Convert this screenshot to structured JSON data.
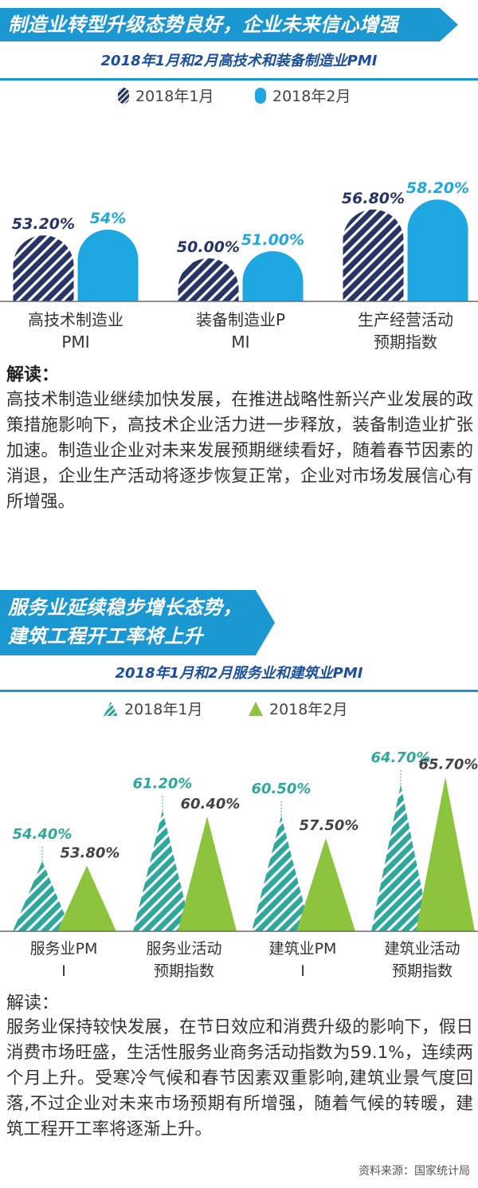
{
  "section1": {
    "banner": "制造业转型升级态势良好，企业未来信心增强",
    "chart_title": "2018年1月和2月高技术和装备制造业PMI",
    "note_heading": "解读：",
    "note_text": "高技术制造业继续加快发展，在推进战略性新兴产业发展的政策措施影响下，高技术企业活力进一步释放，装备制造业扩张加速。制造业企业对未来发展预期继续看好，随着春节因素的消退，企业生产活动将逐步恢复正常，企业对市场发展信心有所增强。"
  },
  "section2": {
    "banner_line1": "服务业延续稳步增长态势，",
    "banner_line2": "建筑工程开工率将上升",
    "chart_title": "2018年1月和2月服务业和建筑业PMI",
    "note_heading": "解读：",
    "note_text": "服务业保持较快发展，在节日效应和消费升级的影响下，假日消费市场旺盛，生活性服务业商务活动指数为59.1%，连续两个月上升。受寒冷气候和春节因素双重影响,建筑业景气度回落,不过企业对未来市场预期有所增强，随着气候的转暖，建筑工程开工率将逐渐上升。"
  },
  "source": "资料来源：国家统计局",
  "colors": {
    "banner": "#1b97d2",
    "jan1": "#263566",
    "feb1": "#1fa7e1",
    "jan2": "#2fa89c",
    "feb2": "#8cc43d",
    "title_text": "#1b4fa0"
  },
  "chart_data": [
    {
      "type": "bar",
      "title": "2018年1月和2月高技术和装备制造业PMI",
      "categories": [
        "高技术制造业PMI",
        "装备制造业PMI",
        "生产经营活动预期指数"
      ],
      "series": [
        {
          "name": "2018年1月",
          "values": [
            53.2,
            50.0,
            56.8
          ],
          "labels": [
            "53.20%",
            "50.00%",
            "56.80%"
          ]
        },
        {
          "name": "2018年2月",
          "values": [
            54.0,
            51.0,
            58.2
          ],
          "labels": [
            "54%",
            "51.00%",
            "58.20%"
          ]
        }
      ],
      "legend": "top-center",
      "grid": false
    },
    {
      "type": "bar",
      "title": "2018年1月和2月服务业和建筑业PMI",
      "categories": [
        "服务业PMI",
        "服务业活动预期指数",
        "建筑业PMI",
        "建筑业活动预期指数"
      ],
      "series": [
        {
          "name": "2018年1月",
          "values": [
            54.4,
            61.2,
            60.5,
            64.7
          ],
          "labels": [
            "54.40%",
            "61.20%",
            "60.50%",
            "64.70%"
          ]
        },
        {
          "name": "2018年2月",
          "values": [
            53.8,
            60.4,
            57.5,
            65.7
          ],
          "labels": [
            "53.80%",
            "60.40%",
            "57.50%",
            "65.70%"
          ]
        }
      ],
      "legend": "top-center",
      "grid": false
    }
  ]
}
